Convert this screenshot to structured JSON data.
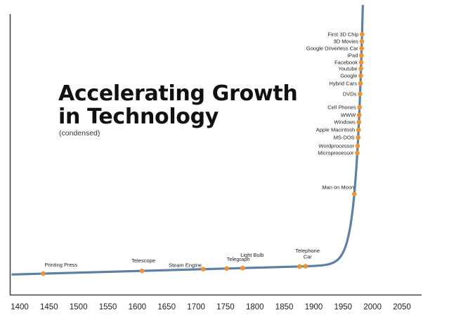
{
  "chart_data": {
    "type": "line",
    "title_line1": "Accelerating Growth",
    "title_line2": "in Technology",
    "subtitle": "(condensed)",
    "xlim": [
      1395,
      2070
    ],
    "x_ticks": [
      1400,
      1450,
      1500,
      1550,
      1600,
      1650,
      1700,
      1750,
      1800,
      1850,
      1900,
      1950,
      2000,
      2050
    ],
    "colors": {
      "line": "#5b81a6",
      "marker": "#f0922e",
      "axis": "#444444",
      "text": "#222222"
    },
    "events": [
      {
        "label": "Printing Press",
        "year": 1440
      },
      {
        "label": "Telescope",
        "year": 1608
      },
      {
        "label": "Steam Engine",
        "year": 1712
      },
      {
        "label": "Telegraph",
        "year": 1752
      },
      {
        "label": "Light Bulb",
        "year": 1779
      },
      {
        "label": "Telephone",
        "year": 1876
      },
      {
        "label": "Car",
        "year": 1886
      },
      {
        "label": "Man on Moon",
        "year": 1969
      },
      {
        "label": "Microprocessor",
        "year": 1971
      },
      {
        "label": "Wordprocessor",
        "year": 1976
      },
      {
        "label": "MS-DOS",
        "year": 1981
      },
      {
        "label": "Apple Macintosh",
        "year": 1984
      },
      {
        "label": "Windows",
        "year": 1985
      },
      {
        "label": "WWW",
        "year": 1991
      },
      {
        "label": "Cell Phones",
        "year": 1993
      },
      {
        "label": "DVDs",
        "year": 1995
      },
      {
        "label": "Hybrid Cars",
        "year": 1997
      },
      {
        "label": "Google",
        "year": 1998
      },
      {
        "label": "Youtube",
        "year": 2005
      },
      {
        "label": "Facebook",
        "year": 2004
      },
      {
        "label": "iPad",
        "year": 2010
      },
      {
        "label": "Google Driverless Car",
        "year": 2010
      },
      {
        "label": "3D Movies",
        "year": 2009
      },
      {
        "label": "First 3D Chip",
        "year": 2012
      }
    ]
  }
}
